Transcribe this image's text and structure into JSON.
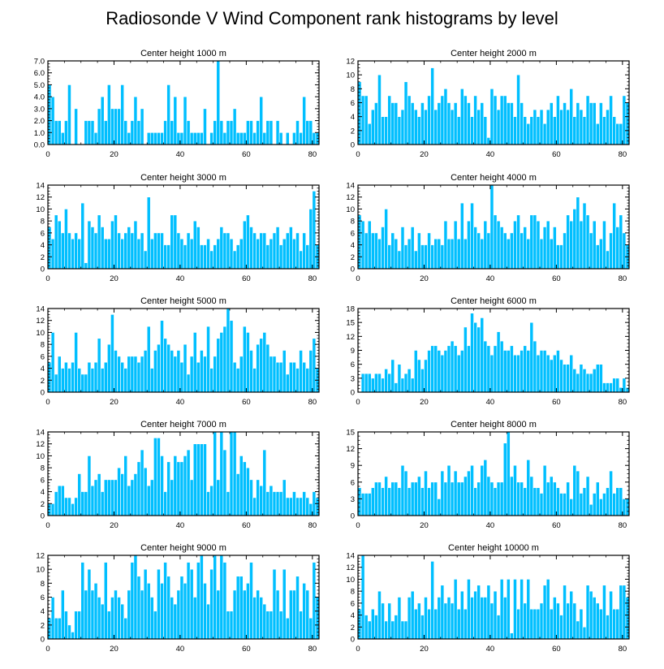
{
  "title": "Radiosonde V Wind Component rank histograms by level",
  "colors": {
    "bar": "#00bfff",
    "bar_edge": "#ffffff",
    "axis": "#000000"
  },
  "chart_data": [
    {
      "type": "bar",
      "title": "Center height 1000 m",
      "xlim": [
        0,
        82
      ],
      "ylim": [
        0,
        7
      ],
      "xticks": [
        0,
        20,
        40,
        60,
        80
      ],
      "yticks": [
        0,
        1,
        2,
        3,
        4,
        5,
        6,
        7
      ],
      "ytick_labels": [
        "0.0",
        "1.0",
        "2.0",
        "3.0",
        "4.0",
        "5.0",
        "6.0",
        "7.0"
      ],
      "values": [
        5,
        4,
        2,
        2,
        1,
        2,
        5,
        0,
        3,
        0,
        0,
        2,
        2,
        2,
        1,
        3,
        4,
        2,
        5,
        3,
        3,
        3,
        5,
        2,
        1,
        2,
        4,
        2,
        3,
        0,
        1,
        1,
        1,
        1,
        1,
        2,
        5,
        2,
        4,
        1,
        1,
        4,
        2,
        1,
        1,
        1,
        1,
        3,
        0,
        1,
        2,
        7,
        2,
        1,
        2,
        2,
        3,
        1,
        1,
        1,
        2,
        2,
        1,
        2,
        4,
        1,
        2,
        2,
        0,
        2,
        1,
        0,
        1,
        0,
        1,
        2,
        1,
        4,
        2,
        2,
        1,
        1
      ]
    },
    {
      "type": "bar",
      "title": "Center height 2000 m",
      "xlim": [
        0,
        82
      ],
      "ylim": [
        0,
        12
      ],
      "xticks": [
        0,
        20,
        40,
        60,
        80
      ],
      "yticks": [
        0,
        2,
        4,
        6,
        8,
        10,
        12
      ],
      "ytick_labels": [
        "0",
        "2",
        "4",
        "6",
        "8",
        "10",
        "12"
      ],
      "values": [
        9,
        7,
        7,
        3,
        5,
        6,
        10,
        4,
        4,
        7,
        6,
        6,
        4,
        5,
        9,
        7,
        6,
        5,
        4,
        6,
        5,
        7,
        11,
        5,
        6,
        7,
        8,
        6,
        5,
        6,
        4,
        8,
        7,
        6,
        4,
        7,
        5,
        6,
        4,
        1,
        8,
        7,
        5,
        7,
        7,
        6,
        6,
        4,
        10,
        6,
        4,
        3,
        4,
        5,
        4,
        5,
        3,
        5,
        6,
        4,
        7,
        5,
        6,
        5,
        8,
        4,
        6,
        5,
        4,
        7,
        6,
        6,
        3,
        6,
        4,
        5,
        7,
        4,
        3,
        3,
        7,
        6
      ]
    },
    {
      "type": "bar",
      "title": "Center height 3000 m",
      "xlim": [
        0,
        82
      ],
      "ylim": [
        0,
        14
      ],
      "xticks": [
        0,
        20,
        40,
        60,
        80
      ],
      "yticks": [
        0,
        2,
        4,
        6,
        8,
        10,
        12,
        14
      ],
      "ytick_labels": [
        "0",
        "2",
        "4",
        "6",
        "8",
        "10",
        "12",
        "14"
      ],
      "values": [
        7,
        5,
        9,
        8,
        6,
        10,
        6,
        5,
        6,
        5,
        11,
        1,
        8,
        7,
        6,
        9,
        7,
        5,
        5,
        8,
        9,
        6,
        5,
        6,
        7,
        6,
        8,
        5,
        6,
        3,
        12,
        5,
        6,
        6,
        6,
        4,
        4,
        9,
        9,
        6,
        5,
        4,
        6,
        5,
        8,
        7,
        4,
        4,
        5,
        3,
        4,
        5,
        7,
        6,
        6,
        5,
        3,
        4,
        5,
        8,
        9,
        7,
        6,
        5,
        6,
        6,
        4,
        5,
        6,
        7,
        4,
        5,
        6,
        7,
        5,
        6,
        3,
        6,
        4,
        10,
        13,
        4
      ]
    },
    {
      "type": "bar",
      "title": "Center height 4000 m",
      "xlim": [
        0,
        82
      ],
      "ylim": [
        0,
        14
      ],
      "xticks": [
        0,
        20,
        40,
        60,
        80
      ],
      "yticks": [
        0,
        2,
        4,
        6,
        8,
        10,
        12,
        14
      ],
      "ytick_labels": [
        "0",
        "2",
        "4",
        "6",
        "8",
        "10",
        "12",
        "14"
      ],
      "values": [
        9,
        8,
        6,
        8,
        6,
        6,
        5,
        7,
        10,
        4,
        6,
        5,
        3,
        7,
        4,
        5,
        7,
        3,
        6,
        4,
        4,
        6,
        4,
        5,
        5,
        4,
        8,
        5,
        5,
        8,
        5,
        11,
        5,
        8,
        11,
        7,
        6,
        5,
        8,
        6,
        14,
        9,
        8,
        7,
        6,
        5,
        6,
        8,
        9,
        6,
        7,
        5,
        9,
        9,
        8,
        5,
        7,
        8,
        5,
        7,
        4,
        4,
        6,
        9,
        8,
        10,
        12,
        8,
        11,
        9,
        6,
        8,
        4,
        5,
        8,
        3,
        6,
        11,
        7,
        9,
        6,
        4
      ]
    },
    {
      "type": "bar",
      "title": "Center height 5000 m",
      "xlim": [
        0,
        82
      ],
      "ylim": [
        0,
        14
      ],
      "xticks": [
        0,
        20,
        40,
        60,
        80
      ],
      "yticks": [
        0,
        2,
        4,
        6,
        8,
        10,
        12,
        14
      ],
      "ytick_labels": [
        "0",
        "2",
        "4",
        "6",
        "8",
        "10",
        "12",
        "14"
      ],
      "values": [
        5,
        10,
        3,
        6,
        4,
        5,
        4,
        5,
        10,
        4,
        3,
        3,
        5,
        4,
        5,
        9,
        4,
        5,
        8,
        13,
        7,
        6,
        5,
        4,
        6,
        6,
        6,
        5,
        6,
        7,
        11,
        4,
        7,
        8,
        12,
        9,
        8,
        7,
        6,
        7,
        5,
        8,
        3,
        6,
        10,
        5,
        7,
        6,
        11,
        4,
        6,
        9,
        10,
        11,
        14,
        12,
        5,
        4,
        6,
        11,
        10,
        7,
        4,
        8,
        9,
        10,
        8,
        6,
        6,
        5,
        5,
        7,
        3,
        5,
        5,
        4,
        7,
        5,
        4,
        7,
        9,
        4
      ]
    },
    {
      "type": "bar",
      "title": "Center height 6000 m",
      "xlim": [
        0,
        82
      ],
      "ylim": [
        0,
        18
      ],
      "xticks": [
        0,
        20,
        40,
        60,
        80
      ],
      "yticks": [
        0,
        3,
        6,
        9,
        12,
        15,
        18
      ],
      "ytick_labels": [
        "0",
        "3",
        "6",
        "9",
        "12",
        "15",
        "18"
      ],
      "values": [
        0,
        4,
        4,
        4,
        3,
        4,
        4,
        3,
        5,
        4,
        7,
        2,
        6,
        3,
        4,
        5,
        3,
        9,
        7,
        5,
        7,
        9,
        10,
        10,
        9,
        8,
        9,
        10,
        11,
        10,
        8,
        9,
        14,
        10,
        17,
        15,
        14,
        16,
        11,
        10,
        8,
        10,
        13,
        11,
        9,
        9,
        10,
        8,
        8,
        9,
        10,
        9,
        15,
        11,
        8,
        9,
        9,
        8,
        7,
        8,
        9,
        7,
        6,
        6,
        8,
        5,
        4,
        6,
        5,
        4,
        4,
        5,
        6,
        6,
        2,
        2,
        2,
        3,
        3,
        1,
        3,
        1
      ]
    },
    {
      "type": "bar",
      "title": "Center height 7000 m",
      "xlim": [
        0,
        82
      ],
      "ylim": [
        0,
        14
      ],
      "xticks": [
        0,
        20,
        40,
        60,
        80
      ],
      "yticks": [
        0,
        2,
        4,
        6,
        8,
        10,
        12,
        14
      ],
      "ytick_labels": [
        "0",
        "2",
        "4",
        "6",
        "8",
        "10",
        "12",
        "14"
      ],
      "values": [
        2,
        2,
        4,
        5,
        5,
        3,
        3,
        2,
        3,
        7,
        4,
        4,
        10,
        5,
        6,
        7,
        4,
        6,
        6,
        6,
        6,
        8,
        7,
        10,
        5,
        6,
        7,
        9,
        11,
        8,
        5,
        6,
        13,
        13,
        10,
        4,
        9,
        6,
        10,
        9,
        9,
        10,
        11,
        6,
        12,
        12,
        12,
        12,
        4,
        5,
        14,
        6,
        14,
        11,
        4,
        14,
        14,
        7,
        10,
        9,
        8,
        6,
        3,
        6,
        5,
        11,
        4,
        5,
        4,
        4,
        4,
        6,
        3,
        3,
        4,
        3,
        3,
        4,
        3,
        2,
        4,
        3
      ]
    },
    {
      "type": "bar",
      "title": "Center height 8000 m",
      "xlim": [
        0,
        82
      ],
      "ylim": [
        0,
        15
      ],
      "xticks": [
        0,
        20,
        40,
        60,
        80
      ],
      "yticks": [
        0,
        3,
        6,
        9,
        12,
        15
      ],
      "ytick_labels": [
        "0",
        "3",
        "6",
        "9",
        "12",
        "15"
      ],
      "values": [
        5,
        4,
        4,
        4,
        5,
        6,
        6,
        5,
        7,
        5,
        6,
        6,
        5,
        9,
        8,
        5,
        6,
        6,
        7,
        5,
        8,
        5,
        6,
        6,
        3,
        8,
        6,
        9,
        6,
        8,
        6,
        6,
        7,
        8,
        9,
        5,
        6,
        9,
        10,
        7,
        6,
        5,
        6,
        6,
        13,
        15,
        7,
        9,
        6,
        6,
        5,
        10,
        7,
        5,
        5,
        4,
        9,
        6,
        7,
        6,
        5,
        4,
        4,
        6,
        3,
        9,
        8,
        4,
        5,
        7,
        2,
        4,
        6,
        3,
        4,
        5,
        8,
        4,
        5,
        5,
        3,
        3
      ]
    },
    {
      "type": "bar",
      "title": "Center height 9000 m",
      "xlim": [
        0,
        82
      ],
      "ylim": [
        0,
        12
      ],
      "xticks": [
        0,
        20,
        40,
        60,
        80
      ],
      "yticks": [
        0,
        2,
        4,
        6,
        8,
        10,
        12
      ],
      "ytick_labels": [
        "0",
        "2",
        "4",
        "6",
        "8",
        "10",
        "12"
      ],
      "values": [
        3,
        6,
        3,
        3,
        7,
        4,
        2,
        1,
        4,
        4,
        11,
        7,
        10,
        7,
        8,
        6,
        5,
        11,
        4,
        6,
        7,
        6,
        5,
        3,
        7,
        11,
        12,
        9,
        7,
        10,
        8,
        6,
        4,
        10,
        8,
        11,
        9,
        6,
        5,
        7,
        9,
        8,
        11,
        10,
        6,
        11,
        12,
        8,
        5,
        10,
        12,
        7,
        12,
        11,
        4,
        4,
        7,
        9,
        9,
        7,
        8,
        11,
        6,
        7,
        6,
        5,
        4,
        4,
        10,
        7,
        4,
        10,
        3,
        7,
        7,
        9,
        4,
        8,
        7,
        3,
        11,
        6
      ]
    },
    {
      "type": "bar",
      "title": "Center height 10000 m",
      "xlim": [
        0,
        82
      ],
      "ylim": [
        0,
        14
      ],
      "xticks": [
        0,
        20,
        40,
        60,
        80
      ],
      "yticks": [
        0,
        2,
        4,
        6,
        8,
        10,
        12,
        14
      ],
      "ytick_labels": [
        "0",
        "2",
        "4",
        "6",
        "8",
        "10",
        "12",
        "14"
      ],
      "values": [
        5,
        14,
        4,
        3,
        5,
        4,
        8,
        6,
        3,
        6,
        3,
        4,
        7,
        3,
        3,
        7,
        8,
        5,
        6,
        4,
        7,
        5,
        13,
        5,
        7,
        9,
        6,
        7,
        6,
        10,
        5,
        8,
        5,
        10,
        7,
        8,
        9,
        7,
        7,
        9,
        6,
        8,
        4,
        10,
        7,
        10,
        1,
        10,
        5,
        10,
        6,
        10,
        5,
        5,
        5,
        6,
        9,
        10,
        5,
        7,
        6,
        4,
        9,
        6,
        8,
        6,
        3,
        5,
        2,
        9,
        8,
        7,
        6,
        5,
        9,
        4,
        8,
        5,
        5,
        9,
        9,
        7
      ]
    }
  ]
}
